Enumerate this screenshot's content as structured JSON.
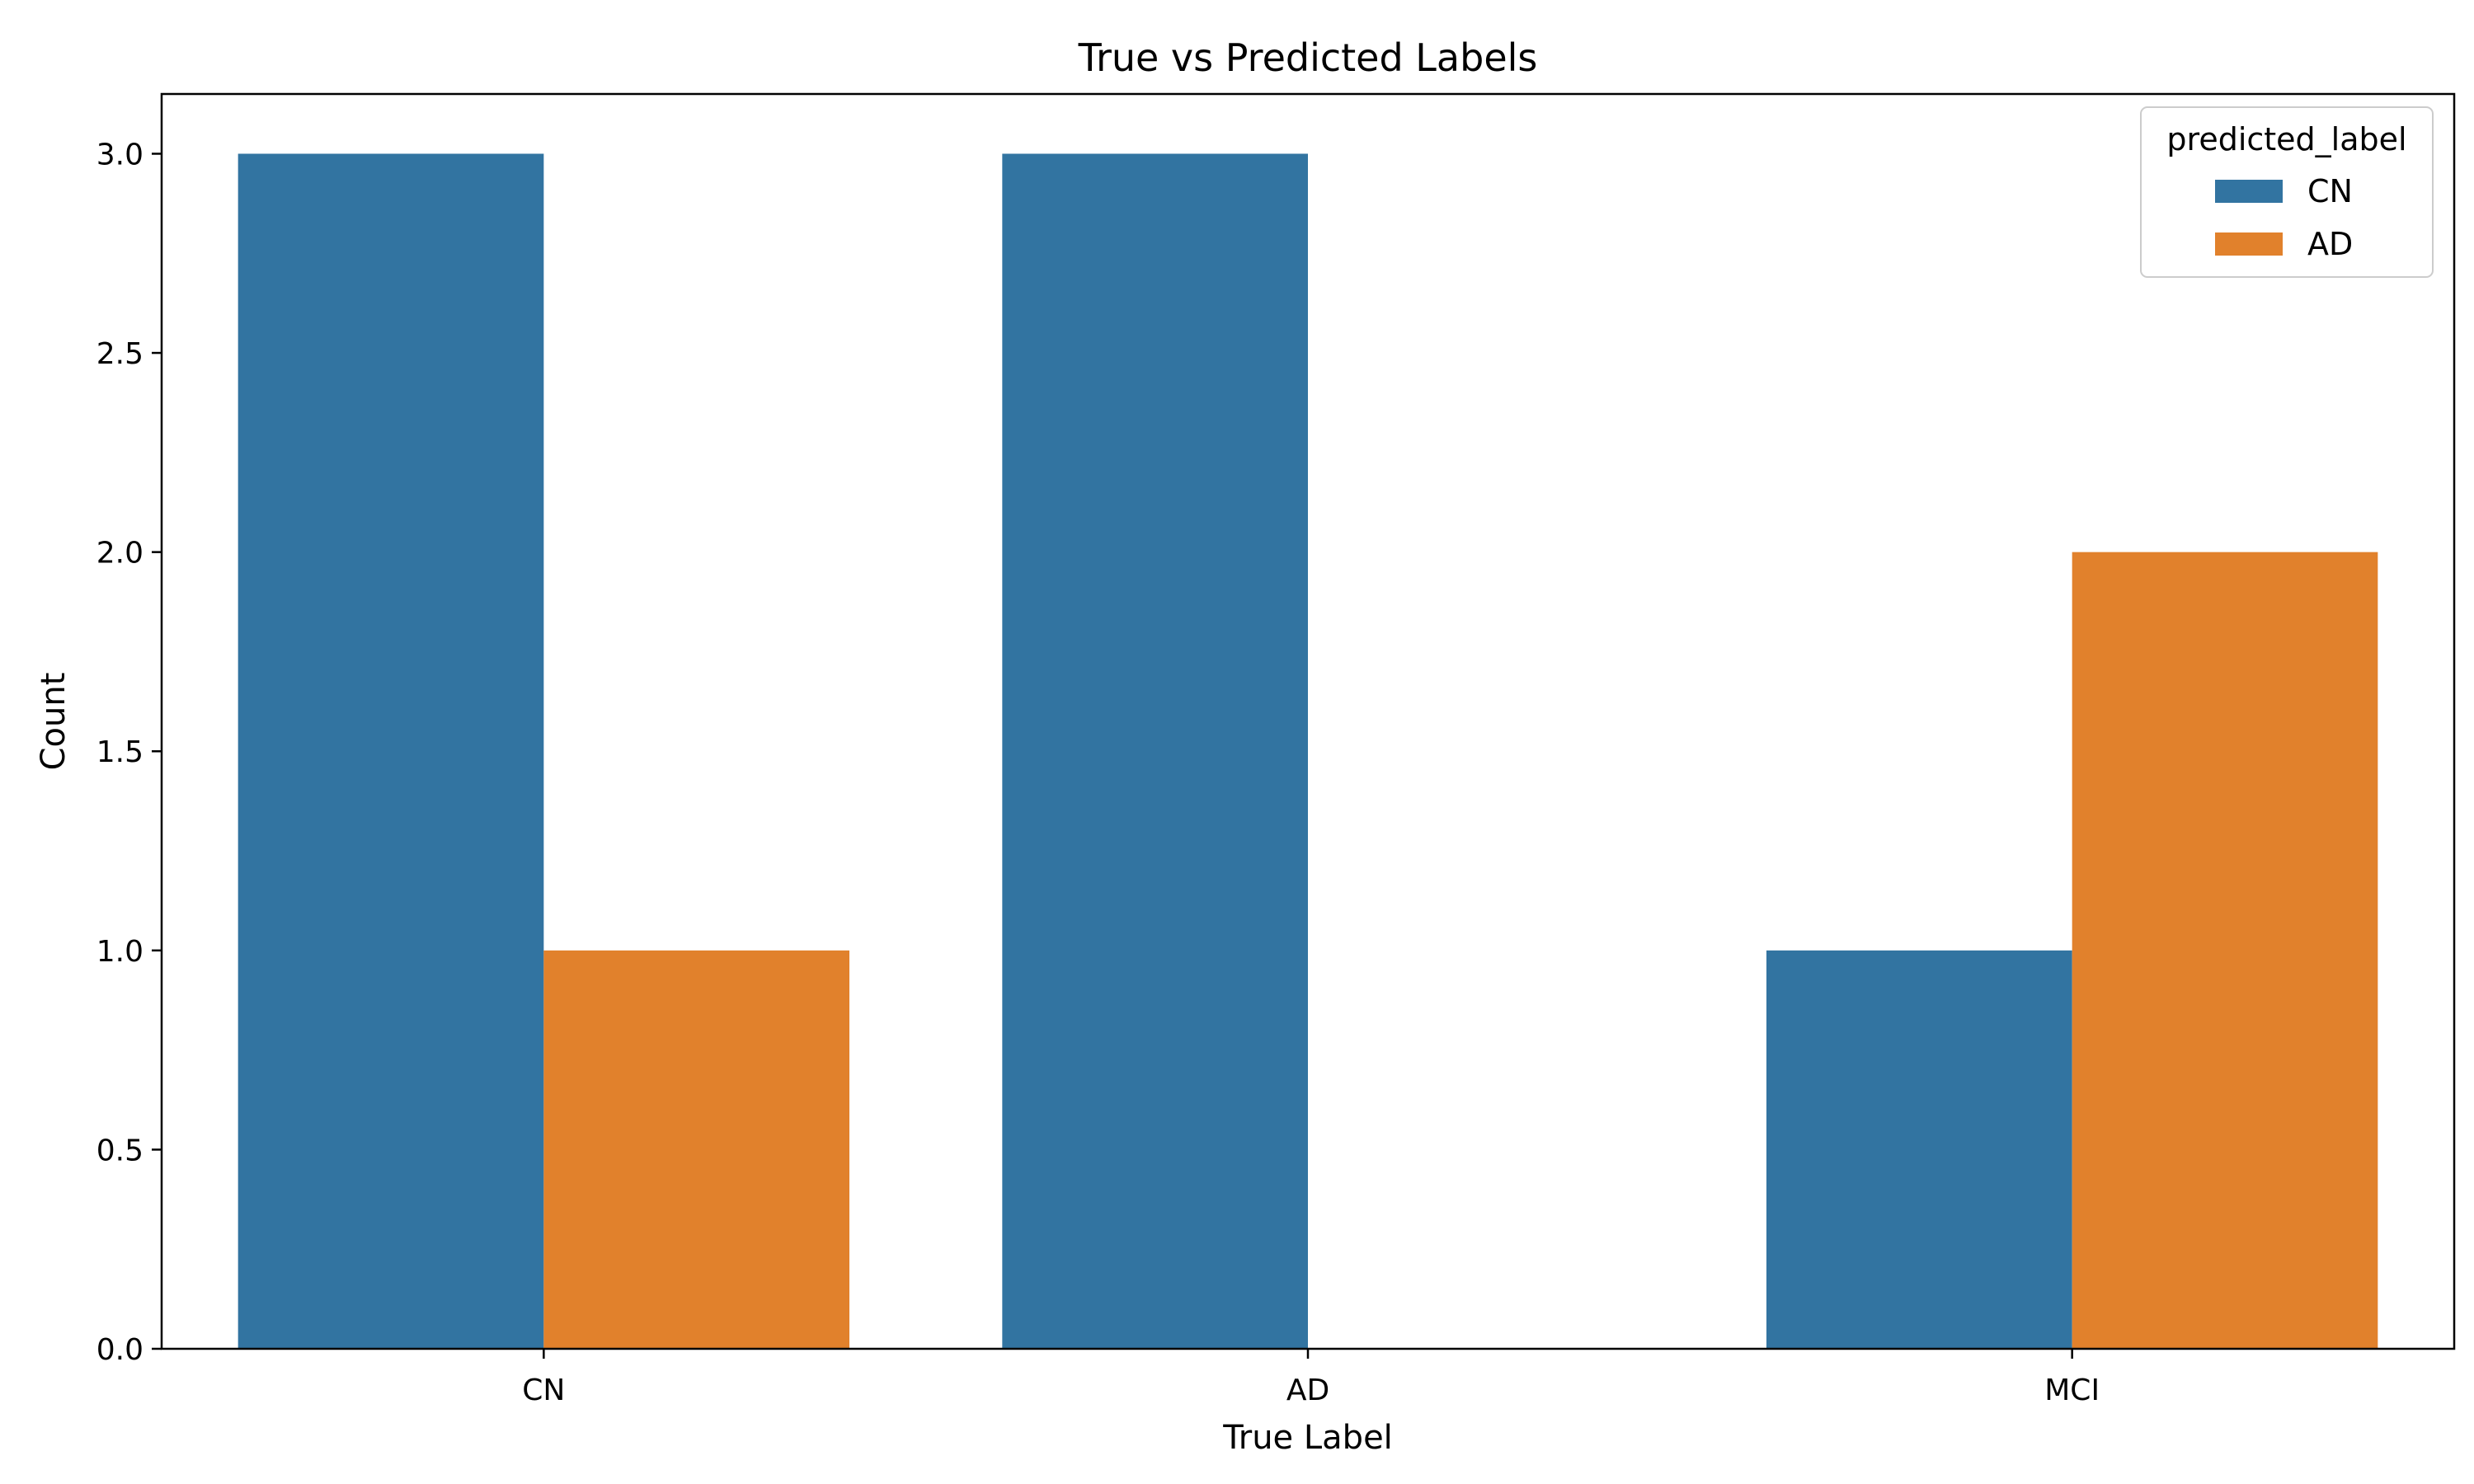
{
  "chart_data": {
    "type": "bar",
    "title": "True vs Predicted Labels",
    "xlabel": "True Label",
    "ylabel": "Count",
    "categories": [
      "CN",
      "AD",
      "MCI"
    ],
    "series": [
      {
        "name": "CN",
        "values": [
          3,
          3,
          1
        ],
        "color": "#3274a1"
      },
      {
        "name": "AD",
        "values": [
          1,
          0,
          2
        ],
        "color": "#e1812c"
      }
    ],
    "ylim": [
      0,
      3.15
    ],
    "yticks": [
      0.0,
      0.5,
      1.0,
      1.5,
      2.0,
      2.5,
      3.0
    ],
    "ytick_labels": [
      "0.0",
      "0.5",
      "1.0",
      "1.5",
      "2.0",
      "2.5",
      "3.0"
    ],
    "legend": {
      "title": "predicted_label",
      "placement": "top-right"
    },
    "grid": false
  }
}
